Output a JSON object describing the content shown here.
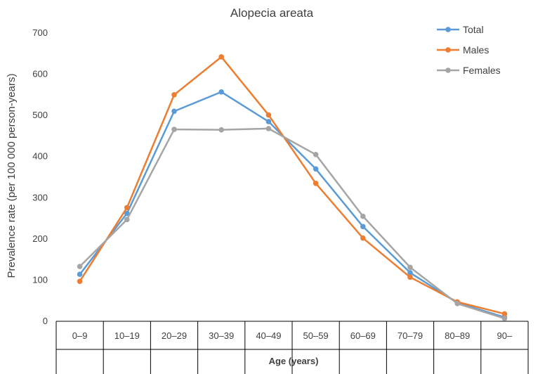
{
  "chart_data": {
    "type": "line",
    "title": "Alopecia areata",
    "xlabel": "Age (years)",
    "ylabel": "Prevalence rate (per 100 000 person-years)",
    "categories": [
      "0–9",
      "10–19",
      "20–29",
      "30–39",
      "40–49",
      "50–59",
      "60–69",
      "70–79",
      "80–89",
      "90–"
    ],
    "ylim": [
      0,
      700
    ],
    "yticks": [
      0,
      100,
      200,
      300,
      400,
      500,
      600,
      700
    ],
    "grid": false,
    "legend_position": "top-right",
    "series": [
      {
        "name": "Total",
        "color": "#5B9BD5",
        "values": [
          114,
          262,
          510,
          557,
          485,
          370,
          230,
          118,
          45,
          10
        ]
      },
      {
        "name": "Males",
        "color": "#ED7D31",
        "values": [
          97,
          276,
          550,
          642,
          501,
          335,
          202,
          107,
          47,
          18
        ]
      },
      {
        "name": "Females",
        "color": "#A5A5A5",
        "values": [
          133,
          247,
          466,
          465,
          468,
          405,
          255,
          131,
          43,
          7
        ]
      }
    ]
  }
}
